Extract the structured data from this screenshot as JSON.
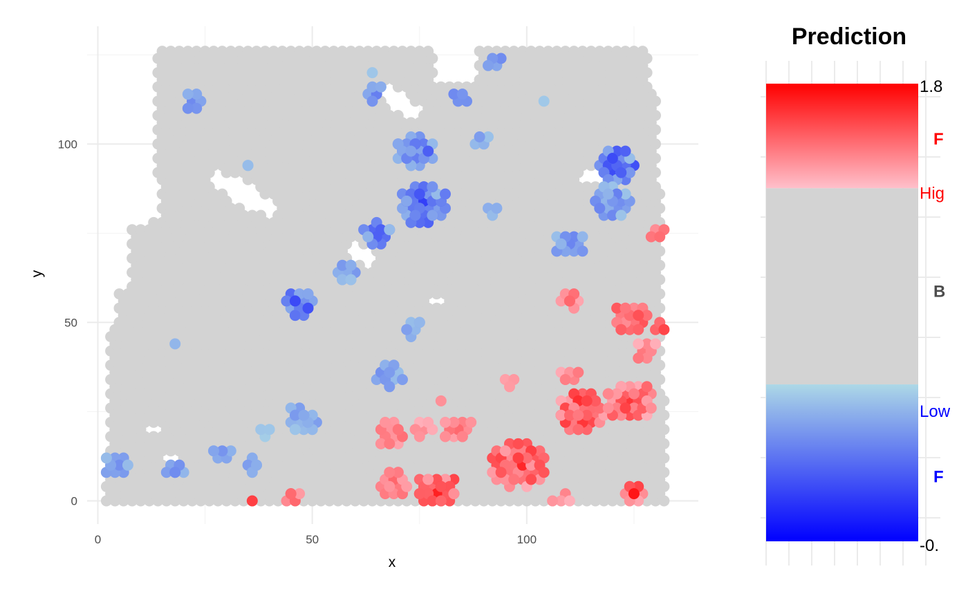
{
  "chart_data": {
    "type": "scatter",
    "title": "",
    "xlabel": "x",
    "ylabel": "y",
    "xlim": [
      -2.5,
      140
    ],
    "ylim": [
      -6.5,
      133
    ],
    "x_ticks": [
      0,
      50,
      100
    ],
    "y_ticks": [
      0,
      50,
      100
    ],
    "grid": true,
    "background_color": "#d3d3d3",
    "background_note": "dense hexagonal grid of grey spots filling the tissue region",
    "legend": {
      "title": "Prediction",
      "position": "right",
      "scale_max_label": "1.8",
      "scale_min_label": "-0.",
      "labels": [
        {
          "text": "F",
          "color": "#ff0000",
          "bold": true,
          "value": 1.55
        },
        {
          "text": "Hig",
          "color": "#ff0000",
          "bold": false,
          "value": 1.3
        },
        {
          "text": "B",
          "color": "#4d4d4d",
          "bold": true,
          "value": 0.85
        },
        {
          "text": "Low",
          "color": "#0000ff",
          "bold": false,
          "value": 0.3
        },
        {
          "text": "F",
          "color": "#0000ff",
          "bold": true,
          "value": 0.0
        }
      ],
      "colors": {
        "max": "#ff0000",
        "high": "#ffc0cb",
        "mid": "#d3d3d3",
        "low": "#add8e6",
        "min": "#0000ff"
      },
      "high_threshold": 1.32,
      "low_threshold": 0.42,
      "range": [
        -0.3,
        1.8
      ]
    },
    "blue_clusters": [
      {
        "cx": 22,
        "cy": 112,
        "n": 6,
        "spread": 2,
        "vmin": 0.05,
        "vmax": 0.32
      },
      {
        "cx": 35,
        "cy": 94,
        "n": 2,
        "spread": 1,
        "vmin": 0.3,
        "vmax": 0.4
      },
      {
        "cx": 65,
        "cy": 114,
        "n": 5,
        "spread": 2,
        "vmin": 0.1,
        "vmax": 0.38
      },
      {
        "cx": 85,
        "cy": 113,
        "n": 4,
        "spread": 2,
        "vmin": 0.05,
        "vmax": 0.3
      },
      {
        "cx": 93,
        "cy": 123,
        "n": 4,
        "spread": 2,
        "vmin": 0.1,
        "vmax": 0.36
      },
      {
        "cx": 74,
        "cy": 98,
        "n": 34,
        "spread": 4,
        "vmin": -0.1,
        "vmax": 0.38
      },
      {
        "cx": 76,
        "cy": 83,
        "n": 40,
        "spread": 5,
        "vmin": -0.15,
        "vmax": 0.38
      },
      {
        "cx": 65,
        "cy": 75,
        "n": 14,
        "spread": 3,
        "vmin": -0.05,
        "vmax": 0.38
      },
      {
        "cx": 58,
        "cy": 64,
        "n": 10,
        "spread": 2,
        "vmin": 0.1,
        "vmax": 0.38
      },
      {
        "cx": 47,
        "cy": 55,
        "n": 22,
        "spread": 3,
        "vmin": -0.15,
        "vmax": 0.38
      },
      {
        "cx": 73,
        "cy": 48,
        "n": 6,
        "spread": 2,
        "vmin": 0.1,
        "vmax": 0.38
      },
      {
        "cx": 68,
        "cy": 35,
        "n": 10,
        "spread": 3,
        "vmin": 0.1,
        "vmax": 0.38
      },
      {
        "cx": 48,
        "cy": 23,
        "n": 14,
        "spread": 3,
        "vmin": 0.1,
        "vmax": 0.38
      },
      {
        "cx": 5,
        "cy": 10,
        "n": 10,
        "spread": 3,
        "vmin": 0.15,
        "vmax": 0.38
      },
      {
        "cx": 18,
        "cy": 9,
        "n": 6,
        "spread": 2,
        "vmin": 0.1,
        "vmax": 0.38
      },
      {
        "cx": 29,
        "cy": 13,
        "n": 6,
        "spread": 2,
        "vmin": 0.15,
        "vmax": 0.38
      },
      {
        "cx": 36,
        "cy": 10,
        "n": 5,
        "spread": 2,
        "vmin": 0.1,
        "vmax": 0.38
      },
      {
        "cx": 121,
        "cy": 94,
        "n": 28,
        "spread": 4,
        "vmin": -0.25,
        "vmax": 0.38
      },
      {
        "cx": 120,
        "cy": 84,
        "n": 22,
        "spread": 4,
        "vmin": 0.05,
        "vmax": 0.38
      },
      {
        "cx": 110,
        "cy": 72,
        "n": 16,
        "spread": 3,
        "vmin": 0.05,
        "vmax": 0.38
      },
      {
        "cx": 92,
        "cy": 81,
        "n": 3,
        "spread": 1,
        "vmin": 0.2,
        "vmax": 0.38
      },
      {
        "cx": 89,
        "cy": 102,
        "n": 4,
        "spread": 2,
        "vmin": 0.2,
        "vmax": 0.38
      },
      {
        "cx": 63,
        "cy": 119,
        "n": 1,
        "spread": 0,
        "vmin": 0.35,
        "vmax": 0.4
      },
      {
        "cx": 104,
        "cy": 112,
        "n": 1,
        "spread": 0,
        "vmin": 0.35,
        "vmax": 0.4
      },
      {
        "cx": 17,
        "cy": 44,
        "n": 1,
        "spread": 0,
        "vmin": 0.3,
        "vmax": 0.38
      },
      {
        "cx": 40,
        "cy": 19,
        "n": 3,
        "spread": 2,
        "vmin": 0.3,
        "vmax": 0.4
      }
    ],
    "red_clusters": [
      {
        "cx": 79,
        "cy": 3,
        "n": 40,
        "spread": 4,
        "vmin": 1.35,
        "vmax": 1.8
      },
      {
        "cx": 98,
        "cy": 10,
        "n": 50,
        "spread": 6,
        "vmin": 1.35,
        "vmax": 1.75
      },
      {
        "cx": 68,
        "cy": 19,
        "n": 12,
        "spread": 3,
        "vmin": 1.35,
        "vmax": 1.6
      },
      {
        "cx": 69,
        "cy": 5,
        "n": 16,
        "spread": 3,
        "vmin": 1.35,
        "vmax": 1.6
      },
      {
        "cx": 84,
        "cy": 20,
        "n": 12,
        "spread": 3,
        "vmin": 1.35,
        "vmax": 1.6
      },
      {
        "cx": 76,
        "cy": 20,
        "n": 6,
        "spread": 2,
        "vmin": 1.35,
        "vmax": 1.5
      },
      {
        "cx": 113,
        "cy": 25,
        "n": 40,
        "spread": 5,
        "vmin": 1.35,
        "vmax": 1.8
      },
      {
        "cx": 124,
        "cy": 28,
        "n": 30,
        "spread": 5,
        "vmin": 1.35,
        "vmax": 1.7
      },
      {
        "cx": 124,
        "cy": 51,
        "n": 20,
        "spread": 4,
        "vmin": 1.35,
        "vmax": 1.7
      },
      {
        "cx": 110,
        "cy": 56,
        "n": 8,
        "spread": 2,
        "vmin": 1.35,
        "vmax": 1.6
      },
      {
        "cx": 110,
        "cy": 35,
        "n": 6,
        "spread": 2,
        "vmin": 1.35,
        "vmax": 1.6
      },
      {
        "cx": 128,
        "cy": 42,
        "n": 8,
        "spread": 2,
        "vmin": 1.35,
        "vmax": 1.65
      },
      {
        "cx": 130,
        "cy": 75,
        "n": 4,
        "spread": 2,
        "vmin": 1.35,
        "vmax": 1.6
      },
      {
        "cx": 131,
        "cy": 49,
        "n": 3,
        "spread": 1,
        "vmin": 1.5,
        "vmax": 1.7
      },
      {
        "cx": 125,
        "cy": 2,
        "n": 8,
        "spread": 2,
        "vmin": 1.35,
        "vmax": 1.8
      },
      {
        "cx": 45,
        "cy": 1,
        "n": 5,
        "spread": 2,
        "vmin": 1.4,
        "vmax": 1.6
      },
      {
        "cx": 35,
        "cy": 0,
        "n": 1,
        "spread": 0,
        "vmin": 1.6,
        "vmax": 1.65
      },
      {
        "cx": 108,
        "cy": 1,
        "n": 4,
        "spread": 2,
        "vmin": 1.35,
        "vmax": 1.5
      },
      {
        "cx": 96,
        "cy": 33,
        "n": 3,
        "spread": 2,
        "vmin": 1.35,
        "vmax": 1.45
      },
      {
        "cx": 79,
        "cy": 28,
        "n": 1,
        "spread": 0,
        "vmin": 1.4,
        "vmax": 1.45
      }
    ],
    "holes": [
      {
        "cx": 34,
        "cy": 86,
        "rx": 10,
        "ry": 3,
        "angle": -35
      },
      {
        "cx": 70,
        "cy": 112,
        "rx": 8,
        "ry": 3,
        "angle": -45
      },
      {
        "cx": 61,
        "cy": 69,
        "rx": 4,
        "ry": 2.5,
        "angle": -40
      },
      {
        "cx": 79,
        "cy": 56,
        "rx": 3,
        "ry": 1.5,
        "angle": 0
      },
      {
        "cx": 116,
        "cy": 91,
        "rx": 4,
        "ry": 2,
        "angle": 0
      },
      {
        "cx": 13,
        "cy": 20,
        "rx": 3,
        "ry": 2,
        "angle": 0
      },
      {
        "cx": 17,
        "cy": 12,
        "rx": 1.5,
        "ry": 1.5,
        "angle": 0
      }
    ]
  }
}
